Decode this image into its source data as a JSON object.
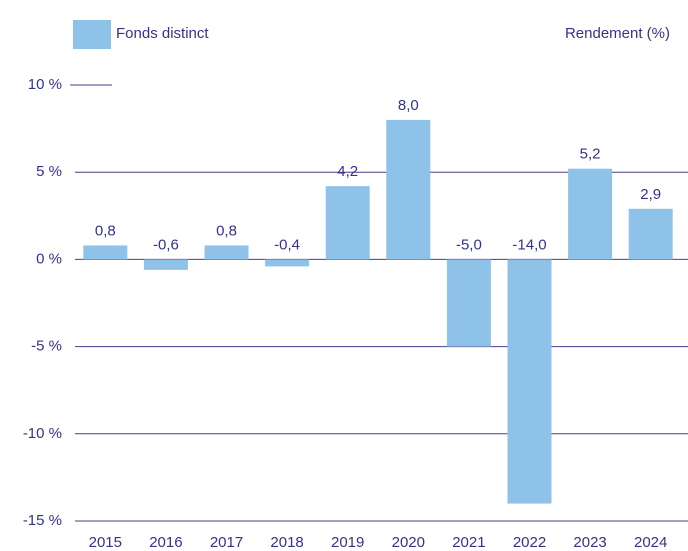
{
  "chart_data": {
    "type": "bar",
    "y_label": "Rendement (%)",
    "categories": [
      "2015",
      "2016",
      "2017",
      "2018",
      "2019",
      "2020",
      "2021",
      "2022",
      "2023",
      "2024"
    ],
    "series": [
      {
        "name": "Fonds distinct",
        "color": "#8fc2e9",
        "values": [
          0.8,
          -0.6,
          0.8,
          -0.4,
          4.2,
          8.0,
          -5.0,
          -14.0,
          5.2,
          2.9
        ],
        "value_labels": [
          "0,8",
          "-0,6",
          "0,8",
          "-0,4",
          "4,2",
          "8,0",
          "-5,0",
          "-14,0",
          "5,2",
          "2,9"
        ]
      }
    ],
    "ylim": [
      -15,
      10
    ],
    "yticks": [
      {
        "value": 10,
        "label": "10 %"
      },
      {
        "value": 5,
        "label": "5 %"
      },
      {
        "value": 0,
        "label": "0 %"
      },
      {
        "value": -5,
        "label": "-5 %"
      },
      {
        "value": -10,
        "label": "-10 %"
      },
      {
        "value": -15,
        "label": "-15 %"
      }
    ],
    "grid": true
  }
}
